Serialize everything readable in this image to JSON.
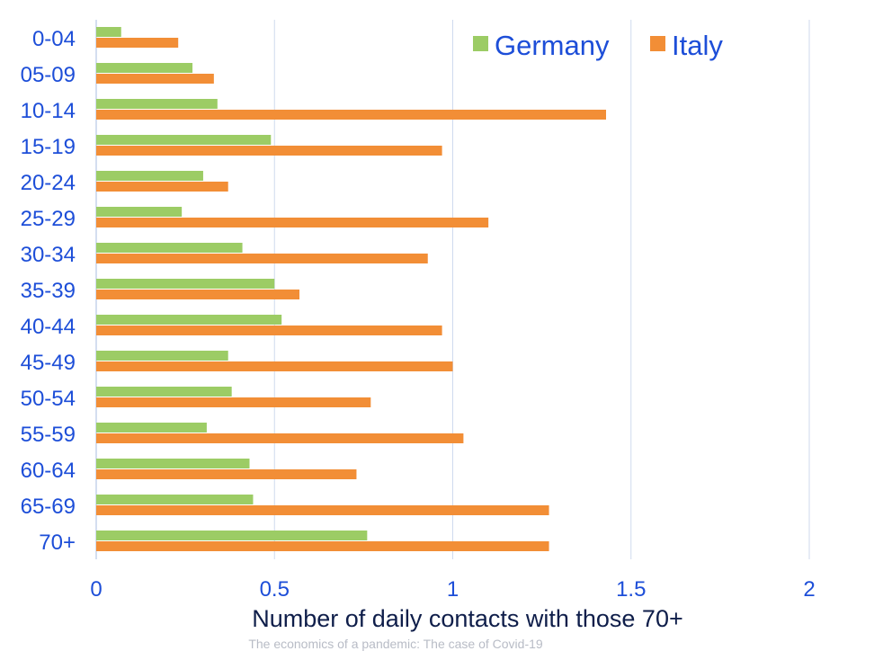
{
  "chart_data": {
    "type": "bar",
    "orientation": "horizontal",
    "categories": [
      "0-04",
      "05-09",
      "10-14",
      "15-19",
      "20-24",
      "25-29",
      "30-34",
      "35-39",
      "40-44",
      "45-49",
      "50-54",
      "55-59",
      "60-64",
      "65-69",
      "70+"
    ],
    "series": [
      {
        "name": "Germany",
        "color": "#9ccc65",
        "values": [
          0.07,
          0.27,
          0.34,
          0.49,
          0.3,
          0.24,
          0.41,
          0.5,
          0.52,
          0.37,
          0.38,
          0.31,
          0.43,
          0.44,
          0.76
        ]
      },
      {
        "name": "Italy",
        "color": "#f28e36",
        "values": [
          0.23,
          0.33,
          1.43,
          0.97,
          0.37,
          1.1,
          0.93,
          0.57,
          0.97,
          1.0,
          0.77,
          1.03,
          0.73,
          1.27,
          1.27
        ]
      }
    ],
    "xlabel": "Number of daily contacts with those 70+",
    "xlim": [
      0,
      2
    ],
    "xticks": [
      "0",
      "0.5",
      "1",
      "1.5",
      "2"
    ],
    "grid": true,
    "legend_position": "top-right",
    "source": "The economics of a pandemic: The case of Covid-19"
  }
}
